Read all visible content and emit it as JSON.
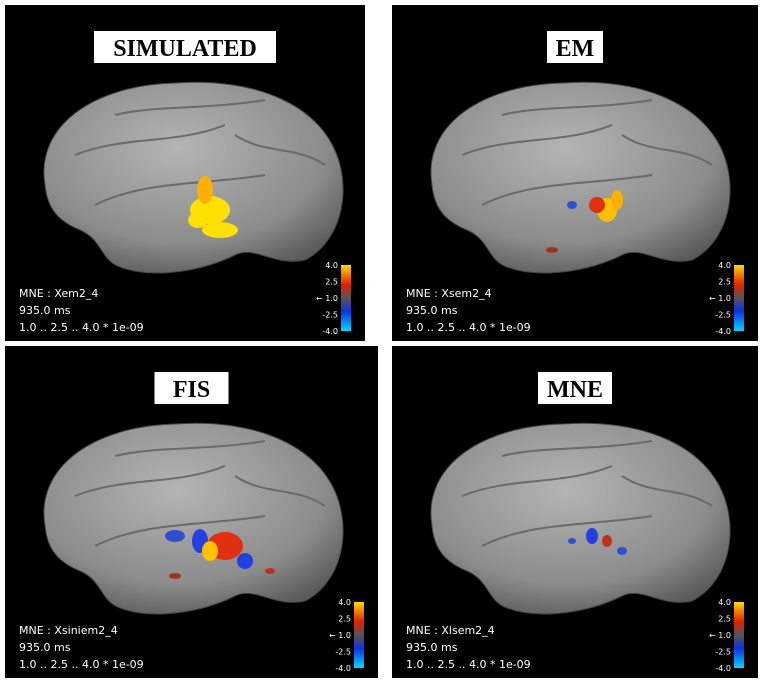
{
  "panels": [
    {
      "title": "SIMULATED",
      "name": "MNE : Xem2_4",
      "time": "935.0  ms",
      "scale": "1.0  .. 2.5  .. 4.0  * 1e-09",
      "colorbar": [
        "4.0",
        "2.5",
        "← 1.0",
        "-2.5",
        "-4.0"
      ]
    },
    {
      "title": "EM",
      "name": "MNE : Xsem2_4",
      "time": "935.0  ms",
      "scale": "1.0  .. 2.5  .. 4.0  * 1e-09",
      "colorbar": [
        "4.0",
        "2.5",
        "← 1.0",
        "-2.5",
        "-4.0"
      ]
    },
    {
      "title": "FIS",
      "name": "MNE : Xsiniem2_4",
      "time": "935.0  ms",
      "scale": "1.0  .. 2.5  .. 4.0  * 1e-09",
      "colorbar": [
        "4.0",
        "2.5",
        "← 1.0",
        "-2.5",
        "-4.0"
      ]
    },
    {
      "title": "MNE",
      "name": "MNE : Xlsem2_4",
      "time": "935.0  ms",
      "scale": "1.0  .. 2.5  .. 4.0  * 1e-09",
      "colorbar": [
        "4.0",
        "2.5",
        "← 1.0",
        "-2.5",
        "-4.0"
      ]
    }
  ]
}
